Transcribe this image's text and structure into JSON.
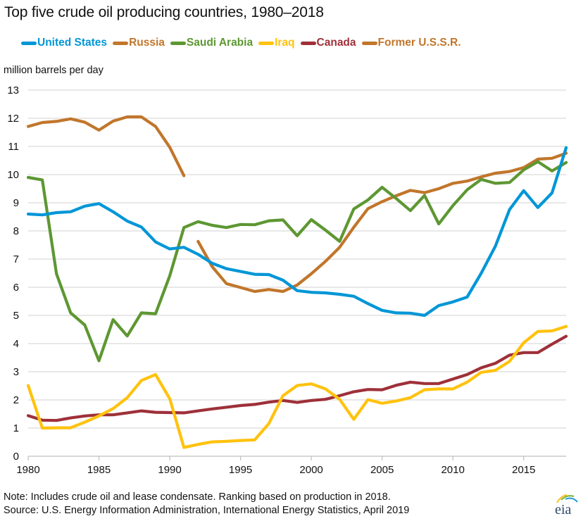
{
  "chart_data": {
    "type": "line",
    "title": "Top five crude oil producing countries, 1980–2018",
    "ylabel": "million barrels per day",
    "xlabel": "",
    "ylim": [
      0,
      13
    ],
    "xlim": [
      1980,
      2018
    ],
    "yticks": [
      "0",
      "1",
      "2",
      "3",
      "4",
      "5",
      "6",
      "7",
      "8",
      "9",
      "10",
      "11",
      "12",
      "13"
    ],
    "xticks": [
      "1980",
      "1985",
      "1990",
      "1995",
      "2000",
      "2005",
      "2010",
      "2015"
    ],
    "grid": true,
    "legend_position": "top",
    "series": [
      {
        "name": "United States",
        "color": "#0096d7",
        "x": [
          1980,
          1981,
          1982,
          1983,
          1984,
          1985,
          1986,
          1987,
          1988,
          1989,
          1990,
          1991,
          1992,
          1993,
          1994,
          1995,
          1996,
          1997,
          1998,
          1999,
          2000,
          2001,
          2002,
          2003,
          2004,
          2005,
          2006,
          2007,
          2008,
          2009,
          2010,
          2011,
          2012,
          2013,
          2014,
          2015,
          2016,
          2017,
          2018
        ],
        "values": [
          8.6,
          8.57,
          8.65,
          8.68,
          8.88,
          8.97,
          8.68,
          8.35,
          8.14,
          7.61,
          7.36,
          7.42,
          7.17,
          6.85,
          6.66,
          6.56,
          6.46,
          6.45,
          6.25,
          5.88,
          5.82,
          5.8,
          5.75,
          5.68,
          5.42,
          5.18,
          5.09,
          5.08,
          5.0,
          5.35,
          5.48,
          5.65,
          6.5,
          7.46,
          8.76,
          9.43,
          8.83,
          9.35,
          10.96
        ]
      },
      {
        "name": "Russia",
        "color": "#c1762b",
        "x": [
          1992,
          1993,
          1994,
          1995,
          1996,
          1997,
          1998,
          1999,
          2000,
          2001,
          2002,
          2003,
          2004,
          2005,
          2006,
          2007,
          2008,
          2009,
          2010,
          2011,
          2012,
          2013,
          2014,
          2015,
          2016,
          2017,
          2018
        ],
        "values": [
          7.63,
          6.73,
          6.13,
          5.99,
          5.85,
          5.92,
          5.85,
          6.08,
          6.48,
          6.92,
          7.42,
          8.13,
          8.79,
          9.04,
          9.25,
          9.44,
          9.36,
          9.5,
          9.69,
          9.77,
          9.92,
          10.05,
          10.11,
          10.25,
          10.55,
          10.58,
          10.76
        ]
      },
      {
        "name": "Saudi Arabia",
        "color": "#5d9732",
        "x": [
          1980,
          1981,
          1982,
          1983,
          1984,
          1985,
          1986,
          1987,
          1988,
          1989,
          1990,
          1991,
          1992,
          1993,
          1994,
          1995,
          1996,
          1997,
          1998,
          1999,
          2000,
          2001,
          2002,
          2003,
          2004,
          2005,
          2006,
          2007,
          2008,
          2009,
          2010,
          2011,
          2012,
          2013,
          2014,
          2015,
          2016,
          2017,
          2018
        ],
        "values": [
          9.9,
          9.81,
          6.48,
          5.09,
          4.66,
          3.39,
          4.85,
          4.27,
          5.09,
          5.06,
          6.41,
          8.12,
          8.33,
          8.2,
          8.12,
          8.23,
          8.22,
          8.36,
          8.39,
          7.83,
          8.4,
          8.03,
          7.63,
          8.78,
          9.1,
          9.55,
          9.15,
          8.72,
          9.26,
          8.25,
          8.9,
          9.46,
          9.83,
          9.69,
          9.72,
          10.17,
          10.46,
          10.13,
          10.43
        ]
      },
      {
        "name": "Iraq",
        "color": "#ffc20e",
        "x": [
          1980,
          1981,
          1982,
          1983,
          1984,
          1985,
          1986,
          1987,
          1988,
          1989,
          1990,
          1991,
          1992,
          1993,
          1994,
          1995,
          1996,
          1997,
          1998,
          1999,
          2000,
          2001,
          2002,
          2003,
          2004,
          2005,
          2006,
          2007,
          2008,
          2009,
          2010,
          2011,
          2012,
          2013,
          2014,
          2015,
          2016,
          2017,
          2018
        ],
        "values": [
          2.51,
          1.0,
          1.01,
          1.01,
          1.21,
          1.43,
          1.69,
          2.08,
          2.69,
          2.9,
          2.04,
          0.31,
          0.42,
          0.51,
          0.53,
          0.56,
          0.58,
          1.16,
          2.15,
          2.51,
          2.57,
          2.39,
          2.02,
          1.31,
          2.01,
          1.88,
          1.96,
          2.08,
          2.36,
          2.39,
          2.39,
          2.63,
          2.98,
          3.05,
          3.37,
          4.03,
          4.43,
          4.45,
          4.61
        ]
      },
      {
        "name": "Canada",
        "color": "#9e3039",
        "x": [
          1980,
          1981,
          1982,
          1983,
          1984,
          1985,
          1986,
          1987,
          1988,
          1989,
          1990,
          1991,
          1992,
          1993,
          1994,
          1995,
          1996,
          1997,
          1998,
          1999,
          2000,
          2001,
          2002,
          2003,
          2004,
          2005,
          2006,
          2007,
          2008,
          2009,
          2010,
          2011,
          2012,
          2013,
          2014,
          2015,
          2016,
          2017,
          2018
        ],
        "values": [
          1.44,
          1.28,
          1.27,
          1.36,
          1.43,
          1.47,
          1.47,
          1.54,
          1.61,
          1.56,
          1.55,
          1.54,
          1.61,
          1.68,
          1.74,
          1.8,
          1.84,
          1.92,
          1.98,
          1.91,
          1.98,
          2.02,
          2.15,
          2.29,
          2.37,
          2.36,
          2.52,
          2.63,
          2.58,
          2.58,
          2.74,
          2.9,
          3.14,
          3.3,
          3.59,
          3.68,
          3.68,
          3.98,
          4.26
        ]
      },
      {
        "name": "Former U.S.S.R.",
        "color": "#c1762b",
        "x": [
          1980,
          1981,
          1982,
          1983,
          1984,
          1985,
          1986,
          1987,
          1988,
          1989,
          1990,
          1991
        ],
        "values": [
          11.71,
          11.85,
          11.89,
          11.98,
          11.86,
          11.58,
          11.9,
          12.05,
          12.05,
          11.71,
          10.97,
          9.96
        ]
      }
    ]
  },
  "legend": {
    "items": [
      {
        "label": "United States",
        "color": "#0096d7"
      },
      {
        "label": "Russia",
        "color": "#c1762b"
      },
      {
        "label": "Saudi Arabia",
        "color": "#5d9732"
      },
      {
        "label": "Iraq",
        "color": "#ffc20e"
      },
      {
        "label": "Canada",
        "color": "#9e3039"
      },
      {
        "label": "Former U.S.S.R.",
        "color": "#c1762b"
      }
    ]
  },
  "footer": {
    "note": "Note: Includes crude oil and lease condensate. Ranking based on production in 2018.",
    "source": "Source: U.S. Energy Information Administration, International Energy Statistics, April 2019"
  },
  "logo": {
    "text": "eia"
  }
}
